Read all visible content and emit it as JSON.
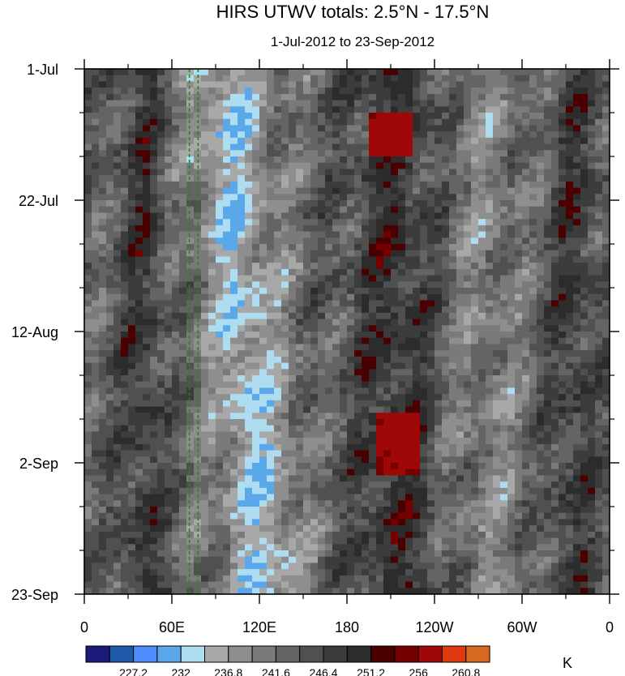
{
  "chart_data": {
    "type": "heatmap",
    "title": "HIRS UTWV totals: 2.5°N - 17.5°N",
    "subtitle": "1-Jul-2012 to 23-Sep-2012",
    "x_tick_labels": [
      "0",
      "60E",
      "120E",
      "180",
      "120W",
      "60W",
      "0"
    ],
    "x_ticks_deg": [
      0,
      60,
      120,
      180,
      240,
      300,
      360
    ],
    "xlim": [
      0,
      360
    ],
    "y_tick_labels": [
      "1-Jul",
      "22-Jul",
      "12-Aug",
      "2-Sep",
      "23-Sep"
    ],
    "y_ticks_day": [
      0,
      21,
      42,
      63,
      84
    ],
    "ylim": [
      0,
      84
    ],
    "colorbar_unit": "K",
    "colorbar_labels": [
      "227.2",
      "232",
      "236.8",
      "241.6",
      "246.4",
      "251.2",
      "256",
      "260.8"
    ],
    "colorbar_levels": [
      227.2,
      232,
      236.8,
      241.6,
      246.4,
      251.2,
      256,
      260.8
    ],
    "colorbar_colors": [
      "#1a1a7a",
      "#1f5aa8",
      "#4f8cff",
      "#5aa8ea",
      "#aedcf0",
      "#a8a8a8",
      "#8e8e8e",
      "#7a7a7a",
      "#646464",
      "#505050",
      "#3c3c3c",
      "#2c2c2c",
      "#4a0000",
      "#740000",
      "#a00808",
      "#e03a10",
      "#d86a20"
    ],
    "reference_lines_deg": [
      72,
      78
    ],
    "reference_line_color": "#1a8a1a"
  }
}
